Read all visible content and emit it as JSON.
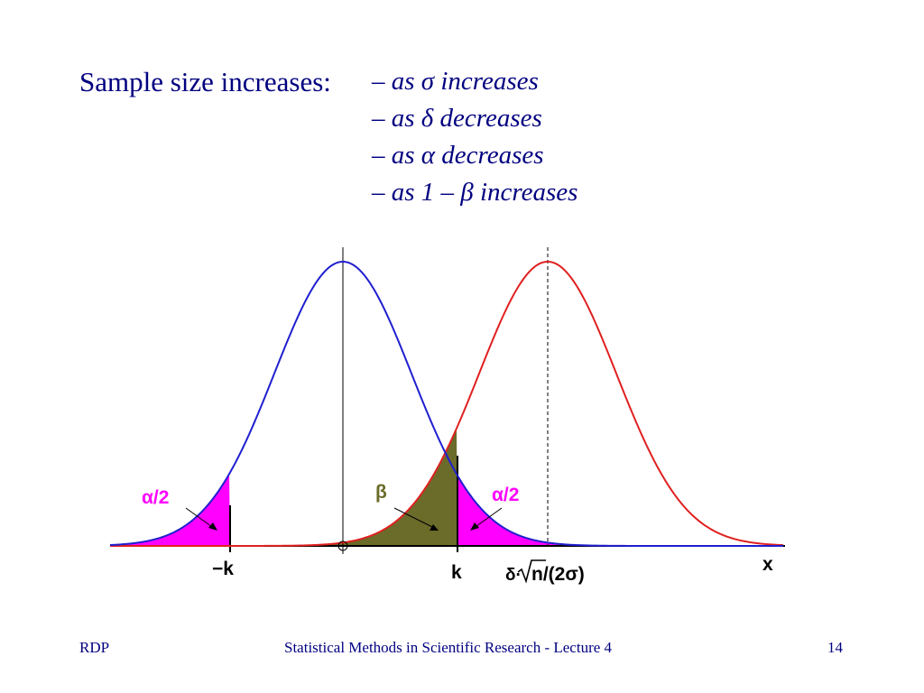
{
  "heading": {
    "label": "Sample size increases:"
  },
  "bullets": [
    {
      "dash": "–",
      "text": "as σ increases"
    },
    {
      "dash": "–",
      "text": "as δ decreases"
    },
    {
      "dash": "–",
      "text": "as α decreases"
    },
    {
      "dash": "–",
      "text": "as 1 – β increases"
    }
  ],
  "diagram": {
    "labels": {
      "alpha_half_left": "α/2",
      "alpha_half_right": "α/2",
      "beta": "β",
      "neg_k": "−k",
      "k": "k",
      "shift_delta": "δ·",
      "shift_rest": "n/(2σ)",
      "x_axis": "x"
    },
    "colors": {
      "null_curve": "#1f1fd0",
      "alt_curve": "#e02020",
      "alpha_fill": "#ff00ff",
      "beta_fill": "#6b6b2a",
      "axis": "#000000",
      "label_magenta": "#ff00ff",
      "label_olive": "#6b6b2a",
      "label_black": "#000000"
    }
  },
  "footer": {
    "left": "RDP",
    "center": "Statistical Methods in Scientific Research - Lecture 4",
    "right": "14"
  }
}
